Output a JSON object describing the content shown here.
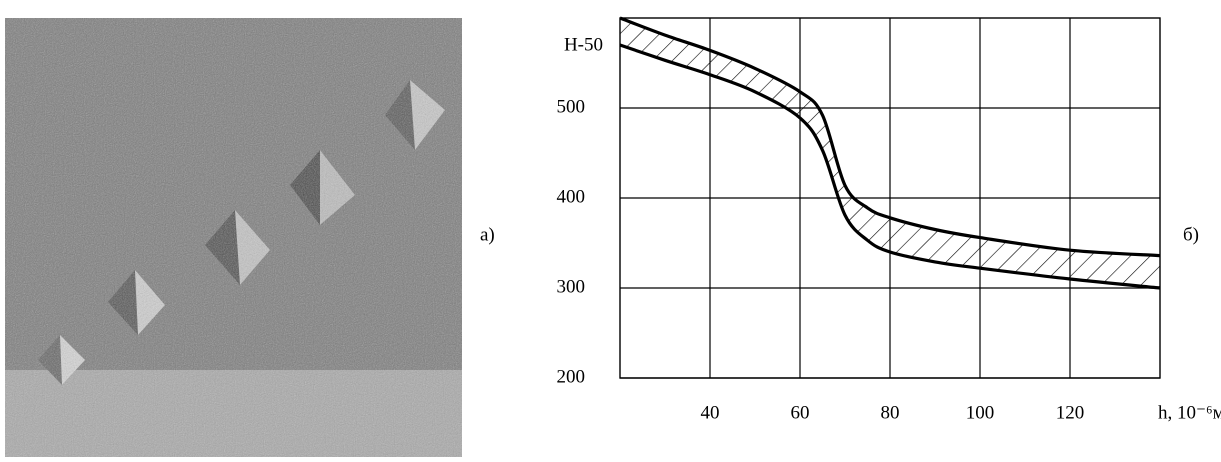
{
  "figure": {
    "panel_a_label": "а)",
    "panel_b_label": "б)"
  },
  "chart_data": {
    "type": "line",
    "y_label": "H-50",
    "x_label": "h, 10⁻⁶м",
    "x": [
      20,
      30,
      40,
      50,
      60,
      65,
      70,
      75,
      80,
      90,
      100,
      120,
      140
    ],
    "series": [
      {
        "color": "#000000",
        "values": [
          600,
          581,
          564,
          544,
          518,
          492,
          414,
          389,
          378,
          365,
          356,
          342,
          336
        ]
      },
      {
        "color": "#000000",
        "values": [
          570,
          553,
          537,
          518,
          489,
          453,
          381,
          353,
          340,
          329,
          322,
          310,
          300
        ]
      }
    ],
    "xlim": [
      20,
      140
    ],
    "xticks": [
      40,
      60,
      80,
      100,
      120
    ],
    "ylim": [
      200,
      600
    ],
    "yticks": [
      200,
      300,
      400,
      500
    ],
    "grid": true,
    "hatched_band": true
  }
}
